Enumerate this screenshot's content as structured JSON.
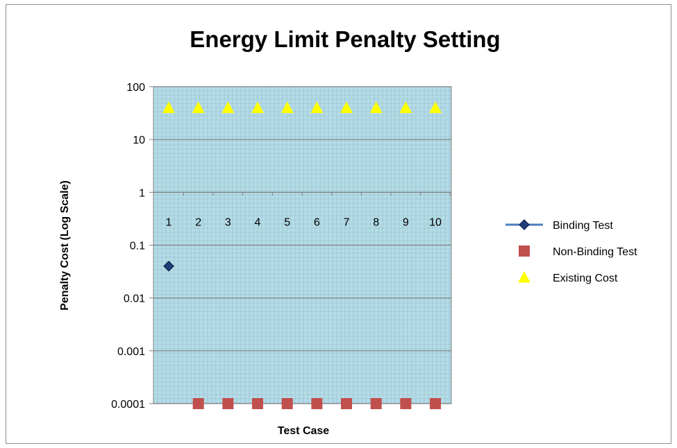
{
  "chart_data": {
    "type": "scatter",
    "title": "Energy Limit Penalty Setting",
    "xlabel": "Test Case",
    "ylabel": "Penalty Cost (Log Scale)",
    "y_scale": "log",
    "ylim": [
      0.0001,
      100
    ],
    "y_ticks": [
      "0.0001",
      "0.001",
      "0.01",
      "0.1",
      "1",
      "10",
      "100"
    ],
    "y_tick_values": [
      0.0001,
      0.001,
      0.01,
      0.1,
      1,
      10,
      100
    ],
    "categories": [
      "1",
      "2",
      "3",
      "4",
      "5",
      "6",
      "7",
      "8",
      "9",
      "10"
    ],
    "x_axis_crosses_at": 1,
    "grid": true,
    "plot_background": "#b4dde8",
    "legend_position": "right",
    "series": [
      {
        "name": "Binding Test",
        "marker": "diamond",
        "color": "#1f3d7a",
        "line": true,
        "x": [
          1
        ],
        "values": [
          0.04
        ]
      },
      {
        "name": "Non-Binding Test",
        "marker": "square",
        "color": "#c0504d",
        "line": false,
        "x": [
          2,
          3,
          4,
          5,
          6,
          7,
          8,
          9,
          10
        ],
        "values": [
          0.0001,
          0.0001,
          0.0001,
          0.0001,
          0.0001,
          0.0001,
          0.0001,
          0.0001,
          0.0001
        ]
      },
      {
        "name": "Existing Cost",
        "marker": "triangle",
        "color": "#ffff00",
        "line": false,
        "x": [
          1,
          2,
          3,
          4,
          5,
          6,
          7,
          8,
          9,
          10
        ],
        "values": [
          40,
          40,
          40,
          40,
          40,
          40,
          40,
          40,
          40,
          40
        ]
      }
    ]
  }
}
